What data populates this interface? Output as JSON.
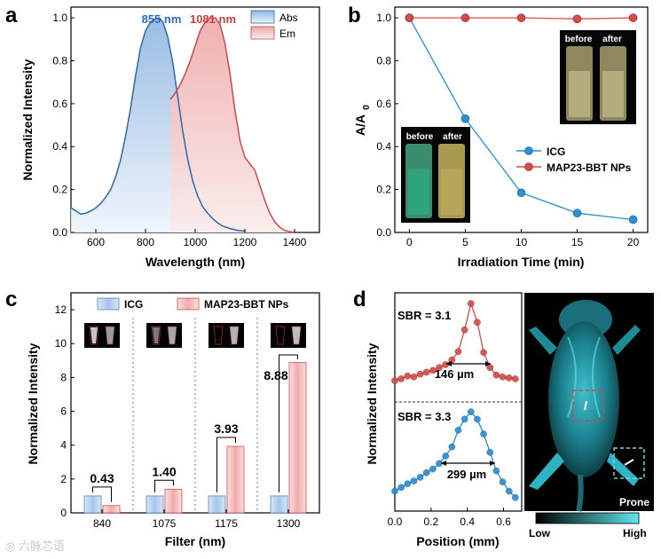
{
  "colors": {
    "abs": "#2e6aa6",
    "abs_fill": "#a9c8e8",
    "em": "#c84a4a",
    "em_fill": "#f2b8b8",
    "icg": "#2b8fd0",
    "map": "#d84a4a",
    "icg_bar": "#b9d3ef",
    "map_bar": "#f4bcbc",
    "ann_blue": "#2a6ab8",
    "ann_red": "#c84040",
    "cyan": "#3ec8d8"
  },
  "watermark": "◎ 六脉芯语",
  "chart_data": [
    {
      "panel": "a",
      "type": "line",
      "xlabel": "Wavelength (nm)",
      "ylabel": "Normalized Intensity",
      "xlim": [
        500,
        1500
      ],
      "ylim": [
        0,
        1.05
      ],
      "xticks": [
        "600",
        "800",
        "1000",
        "1200",
        "1400"
      ],
      "yticks": [
        "0.0",
        "0.2",
        "0.4",
        "0.6",
        "0.8",
        "1.0"
      ],
      "legend": [
        "Abs",
        "Em"
      ],
      "annotations": [
        "855 nm",
        "1081 nm"
      ],
      "series": [
        {
          "name": "Abs",
          "x": [
            500,
            520,
            540,
            560,
            580,
            600,
            620,
            640,
            660,
            680,
            700,
            720,
            740,
            760,
            780,
            800,
            820,
            840,
            855,
            870,
            890,
            910,
            930,
            950,
            970,
            990,
            1010,
            1030,
            1050,
            1070,
            1090,
            1110,
            1140,
            1170,
            1200
          ],
          "y": [
            0.115,
            0.1,
            0.085,
            0.09,
            0.1,
            0.115,
            0.135,
            0.165,
            0.2,
            0.26,
            0.34,
            0.45,
            0.58,
            0.73,
            0.86,
            0.94,
            0.98,
            0.995,
            1.0,
            0.98,
            0.91,
            0.79,
            0.63,
            0.47,
            0.34,
            0.24,
            0.17,
            0.12,
            0.09,
            0.065,
            0.045,
            0.03,
            0.018,
            0.01,
            0.006
          ]
        },
        {
          "name": "Em",
          "x": [
            900,
            920,
            940,
            960,
            980,
            1000,
            1020,
            1040,
            1060,
            1081,
            1100,
            1120,
            1140,
            1160,
            1180,
            1200,
            1220,
            1240,
            1260,
            1280,
            1300,
            1320,
            1340,
            1360,
            1380,
            1400
          ],
          "y": [
            0.62,
            0.65,
            0.69,
            0.74,
            0.8,
            0.87,
            0.94,
            0.98,
            1.0,
            1.0,
            0.97,
            0.88,
            0.74,
            0.57,
            0.43,
            0.35,
            0.32,
            0.29,
            0.22,
            0.15,
            0.09,
            0.05,
            0.025,
            0.01,
            0.004,
            0.0
          ]
        }
      ]
    },
    {
      "panel": "b",
      "type": "line",
      "xlabel": "Irradiation Time (min)",
      "ylabel_main": "A/A",
      "ylabel_sub": "0",
      "xlim": [
        -1.3,
        21.3
      ],
      "ylim": [
        0,
        1.05
      ],
      "xticks": [
        0,
        5,
        10,
        15,
        20
      ],
      "yticks": [
        "0.0",
        "0.2",
        "0.4",
        "0.6",
        "0.8",
        "1.0"
      ],
      "series": [
        {
          "name": "ICG",
          "x": [
            0,
            5,
            10,
            15,
            20
          ],
          "y": [
            1.0,
            0.53,
            0.185,
            0.09,
            0.06
          ]
        },
        {
          "name": "MAP23-BBT NPs",
          "x": [
            0,
            5,
            10,
            15,
            20
          ],
          "y": [
            1.0,
            1.0,
            1.0,
            0.995,
            1.0
          ]
        }
      ],
      "inset_labels": {
        "before": "before",
        "after": "after"
      }
    },
    {
      "panel": "c",
      "type": "bar",
      "xlabel": "Filter (nm)",
      "ylabel": "Normalized Intensity",
      "ylim": [
        0,
        13
      ],
      "yticks": [
        0,
        2,
        4,
        6,
        8,
        10,
        12
      ],
      "categories": [
        "840",
        "1075",
        "1175",
        "1300"
      ],
      "series": [
        {
          "name": "ICG",
          "values": [
            1.0,
            1.0,
            1.0,
            1.0
          ]
        },
        {
          "name": "MAP23-BBT NPs",
          "values": [
            0.43,
            1.4,
            3.93,
            8.88
          ]
        }
      ],
      "ratio_labels": [
        "0.43",
        "1.40",
        "3.93",
        "8.88"
      ]
    },
    {
      "panel": "d",
      "type": "line",
      "xlabel": "Position (mm)",
      "ylabel": "Normalized Intensity",
      "xlim": [
        0,
        0.7
      ],
      "xticks": [
        "0.0",
        "0.2",
        "0.4",
        "0.6"
      ],
      "series": [
        {
          "name": "red profile",
          "sbr": "SBR = 3.1",
          "width": "146 µm",
          "x": [
            0,
            0.035,
            0.07,
            0.105,
            0.14,
            0.175,
            0.21,
            0.245,
            0.28,
            0.315,
            0.35,
            0.385,
            0.42,
            0.455,
            0.49,
            0.525,
            0.56,
            0.595,
            0.63,
            0.665
          ],
          "y": [
            0.16,
            0.18,
            0.21,
            0.2,
            0.23,
            0.25,
            0.27,
            0.3,
            0.33,
            0.38,
            0.47,
            0.7,
            0.98,
            0.78,
            0.46,
            0.3,
            0.22,
            0.2,
            0.19,
            0.18
          ]
        },
        {
          "name": "blue profile",
          "sbr": "SBR = 3.3",
          "width": "299 µm",
          "x": [
            0,
            0.035,
            0.07,
            0.105,
            0.14,
            0.175,
            0.21,
            0.245,
            0.28,
            0.315,
            0.35,
            0.385,
            0.42,
            0.455,
            0.49,
            0.525,
            0.56,
            0.595,
            0.63,
            0.665
          ],
          "y": [
            0.12,
            0.16,
            0.2,
            0.23,
            0.27,
            0.32,
            0.36,
            0.42,
            0.5,
            0.6,
            0.78,
            0.9,
            0.98,
            0.9,
            0.74,
            0.54,
            0.34,
            0.22,
            0.12,
            0.05
          ]
        }
      ],
      "image_label": "Prone",
      "colorbar": {
        "low": "Low",
        "high": "High"
      }
    }
  ]
}
